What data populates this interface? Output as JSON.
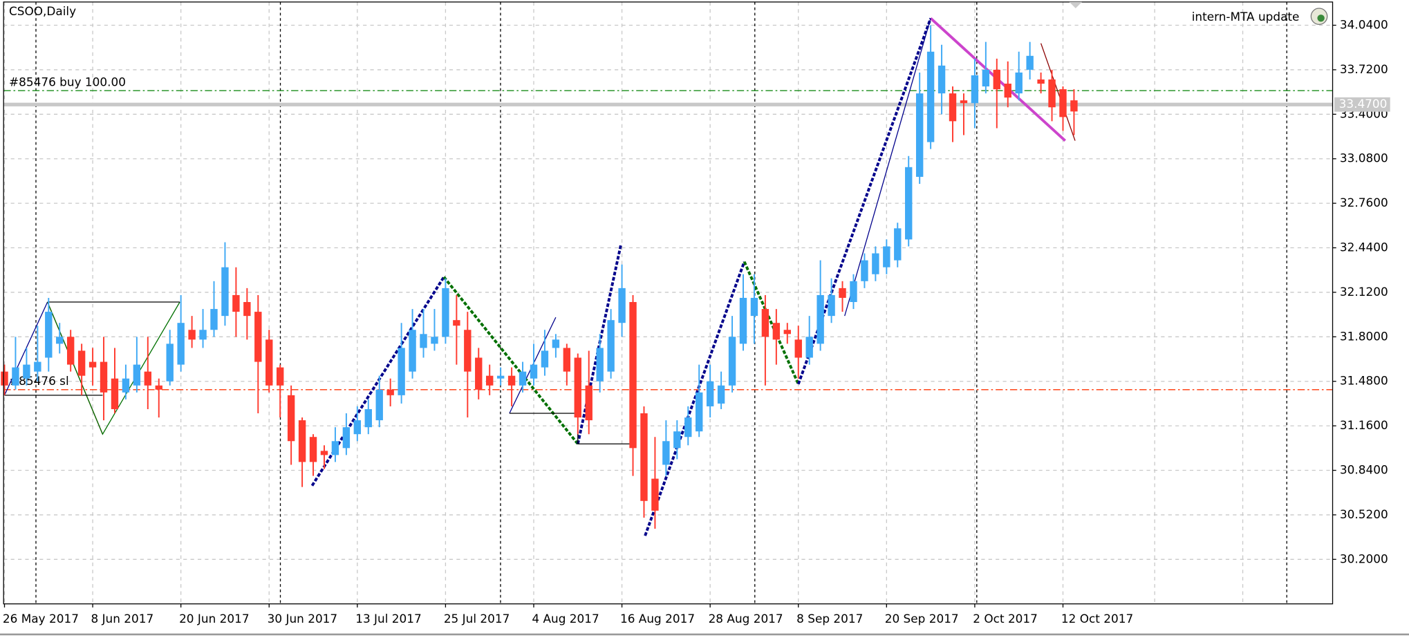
{
  "chart_data": {
    "type": "candlestick",
    "title": "CSOO,Daily",
    "indicator_label": "intern-MTA update",
    "bull_color": "#3fa9f5",
    "bear_color": "#ff3b2f",
    "grid": true,
    "ylim": [
      29.88,
      34.22
    ],
    "yticks": [
      {
        "value": 30.2,
        "label": "30.2000"
      },
      {
        "value": 30.52,
        "label": "30.5200"
      },
      {
        "value": 30.84,
        "label": "30.8400"
      },
      {
        "value": 31.16,
        "label": "31.1600"
      },
      {
        "value": 31.48,
        "label": "31.4800"
      },
      {
        "value": 31.8,
        "label": "31.8000"
      },
      {
        "value": 32.12,
        "label": "32.1200"
      },
      {
        "value": 32.44,
        "label": "32.4400"
      },
      {
        "value": 32.76,
        "label": "32.7600"
      },
      {
        "value": 33.08,
        "label": "33.0800"
      },
      {
        "value": 33.4,
        "label": "33.4000"
      },
      {
        "value": 33.72,
        "label": "33.7200"
      },
      {
        "value": 34.04,
        "label": "34.0400"
      }
    ],
    "categories": [
      "26 May 2017",
      null,
      null,
      null,
      null,
      null,
      null,
      null,
      "8 Jun 2017",
      null,
      null,
      null,
      null,
      null,
      null,
      null,
      "20 Jun 2017",
      null,
      null,
      null,
      null,
      null,
      null,
      null,
      "30 Jun 2017",
      null,
      null,
      null,
      null,
      null,
      null,
      null,
      "13 Jul 2017",
      null,
      null,
      null,
      null,
      null,
      null,
      null,
      "25 Jul 2017",
      null,
      null,
      null,
      null,
      null,
      null,
      null,
      "4 Aug 2017",
      null,
      null,
      null,
      null,
      null,
      null,
      null,
      "16 Aug 2017",
      null,
      null,
      null,
      null,
      null,
      null,
      null,
      "28 Aug 2017",
      null,
      null,
      null,
      null,
      null,
      null,
      null,
      "8 Sep 2017",
      null,
      null,
      null,
      null,
      null,
      null,
      null,
      "20 Sep 2017",
      null,
      null,
      null,
      null,
      null,
      null,
      null,
      "2 Oct 2017",
      null,
      null,
      null,
      null,
      null,
      null,
      null,
      "12 Oct 2017",
      null
    ],
    "ohlc": [
      [
        31.55,
        31.6,
        31.38,
        31.45
      ],
      [
        31.45,
        31.8,
        31.42,
        31.58
      ],
      [
        31.5,
        31.72,
        31.45,
        31.6
      ],
      [
        31.55,
        31.88,
        31.48,
        31.62
      ],
      [
        31.65,
        32.08,
        31.55,
        31.98
      ],
      [
        31.75,
        31.9,
        31.68,
        31.8
      ],
      [
        31.8,
        31.85,
        31.55,
        31.6
      ],
      [
        31.7,
        31.75,
        31.38,
        31.52
      ],
      [
        31.62,
        31.72,
        31.45,
        31.58
      ],
      [
        31.62,
        31.8,
        31.2,
        31.4
      ],
      [
        31.5,
        31.72,
        31.25,
        31.28
      ],
      [
        31.4,
        31.6,
        31.35,
        31.5
      ],
      [
        31.45,
        31.8,
        31.4,
        31.6
      ],
      [
        31.55,
        31.8,
        31.28,
        31.45
      ],
      [
        31.45,
        31.5,
        31.22,
        31.42
      ],
      [
        31.48,
        31.85,
        31.45,
        31.75
      ],
      [
        31.6,
        32.1,
        31.55,
        31.9
      ],
      [
        31.85,
        31.95,
        31.72,
        31.78
      ],
      [
        31.78,
        32.0,
        31.72,
        31.85
      ],
      [
        31.85,
        32.2,
        31.8,
        32.0
      ],
      [
        31.95,
        32.48,
        31.88,
        32.3
      ],
      [
        32.1,
        32.3,
        31.8,
        31.98
      ],
      [
        32.05,
        32.15,
        31.78,
        31.95
      ],
      [
        31.98,
        32.1,
        31.25,
        31.62
      ],
      [
        31.78,
        31.85,
        31.4,
        31.45
      ],
      [
        31.58,
        31.6,
        31.22,
        31.45
      ],
      [
        31.38,
        31.45,
        30.88,
        31.05
      ],
      [
        31.2,
        31.22,
        30.72,
        30.9
      ],
      [
        31.08,
        31.1,
        30.8,
        30.9
      ],
      [
        30.98,
        31.02,
        30.85,
        30.95
      ],
      [
        30.95,
        31.15,
        30.9,
        31.05
      ],
      [
        31.0,
        31.25,
        30.95,
        31.15
      ],
      [
        31.1,
        31.3,
        31.05,
        31.2
      ],
      [
        31.15,
        31.35,
        31.1,
        31.28
      ],
      [
        31.2,
        31.52,
        31.15,
        31.42
      ],
      [
        31.42,
        31.5,
        31.3,
        31.38
      ],
      [
        31.38,
        31.9,
        31.32,
        31.72
      ],
      [
        31.55,
        32.0,
        31.5,
        31.85
      ],
      [
        31.72,
        32.0,
        31.65,
        31.82
      ],
      [
        31.75,
        32.0,
        31.7,
        31.8
      ],
      [
        31.8,
        32.22,
        31.75,
        32.15
      ],
      [
        31.92,
        32.1,
        31.6,
        31.88
      ],
      [
        31.85,
        31.98,
        31.22,
        31.55
      ],
      [
        31.65,
        31.72,
        31.35,
        31.42
      ],
      [
        31.52,
        31.6,
        31.38,
        31.45
      ],
      [
        31.5,
        31.58,
        31.45,
        31.52
      ],
      [
        31.52,
        31.58,
        31.3,
        31.45
      ],
      [
        31.45,
        31.62,
        31.4,
        31.55
      ],
      [
        31.5,
        31.75,
        31.45,
        31.6
      ],
      [
        31.58,
        31.85,
        31.52,
        31.7
      ],
      [
        31.72,
        31.82,
        31.65,
        31.78
      ],
      [
        31.72,
        31.75,
        31.45,
        31.55
      ],
      [
        31.65,
        31.68,
        31.1,
        31.22
      ],
      [
        31.45,
        31.7,
        31.1,
        31.2
      ],
      [
        31.48,
        31.82,
        31.4,
        31.72
      ],
      [
        31.55,
        32.0,
        31.5,
        31.92
      ],
      [
        31.9,
        32.32,
        31.8,
        32.15
      ],
      [
        32.05,
        32.1,
        30.8,
        31.0
      ],
      [
        31.25,
        31.3,
        30.5,
        30.62
      ],
      [
        30.78,
        31.08,
        30.42,
        30.55
      ],
      [
        30.88,
        31.2,
        30.8,
        31.05
      ],
      [
        31.0,
        31.2,
        30.92,
        31.12
      ],
      [
        31.08,
        31.3,
        31.02,
        31.22
      ],
      [
        31.12,
        31.6,
        31.08,
        31.4
      ],
      [
        31.3,
        31.6,
        31.22,
        31.48
      ],
      [
        31.32,
        31.55,
        31.28,
        31.45
      ],
      [
        31.45,
        31.95,
        31.4,
        31.8
      ],
      [
        31.75,
        32.25,
        31.7,
        32.08
      ],
      [
        31.95,
        32.25,
        31.75,
        32.08
      ],
      [
        32.0,
        32.1,
        31.45,
        31.8
      ],
      [
        31.9,
        32.0,
        31.6,
        31.78
      ],
      [
        31.85,
        31.9,
        31.75,
        31.82
      ],
      [
        31.78,
        31.88,
        31.5,
        31.65
      ],
      [
        31.65,
        31.95,
        31.6,
        31.8
      ],
      [
        31.75,
        32.35,
        31.7,
        32.1
      ],
      [
        31.95,
        32.22,
        31.9,
        32.1
      ],
      [
        32.15,
        32.2,
        31.98,
        32.08
      ],
      [
        32.05,
        32.25,
        32.0,
        32.2
      ],
      [
        32.2,
        32.4,
        32.15,
        32.35
      ],
      [
        32.25,
        32.45,
        32.2,
        32.4
      ],
      [
        32.3,
        32.5,
        32.25,
        32.45
      ],
      [
        32.35,
        32.62,
        32.3,
        32.58
      ],
      [
        32.5,
        33.1,
        32.45,
        33.02
      ],
      [
        32.95,
        33.7,
        32.9,
        33.55
      ],
      [
        33.2,
        34.04,
        33.15,
        33.85
      ],
      [
        33.55,
        33.9,
        33.4,
        33.75
      ],
      [
        33.55,
        33.6,
        33.2,
        33.35
      ],
      [
        33.5,
        33.55,
        33.25,
        33.48
      ],
      [
        33.48,
        33.8,
        33.3,
        33.68
      ],
      [
        33.6,
        33.92,
        33.55,
        33.72
      ],
      [
        33.72,
        33.8,
        33.3,
        33.58
      ],
      [
        33.62,
        33.78,
        33.45,
        33.52
      ],
      [
        33.55,
        33.85,
        33.5,
        33.7
      ],
      [
        33.72,
        33.92,
        33.65,
        33.82
      ],
      [
        33.65,
        33.7,
        33.55,
        33.62
      ],
      [
        33.65,
        33.72,
        33.35,
        33.45
      ],
      [
        33.58,
        33.6,
        33.28,
        33.38
      ],
      [
        33.5,
        33.58,
        33.25,
        33.42
      ]
    ],
    "levels": [
      {
        "label": "#85476 buy 100.00",
        "value": 33.57,
        "color": "#008000"
      },
      {
        "label": "#85476 sl",
        "value": 31.42,
        "color": "#ff3300"
      }
    ],
    "current_price": {
      "value": 33.47,
      "label": "33.4700"
    },
    "trend_lines": [
      {
        "color": "#00008b",
        "width": 3,
        "dash": true,
        "points": [
          [
            27.9,
            30.73
          ],
          [
            39.85,
            32.23
          ]
        ]
      },
      {
        "color": "#007000",
        "width": 3,
        "dash": true,
        "points": [
          [
            39.85,
            32.23
          ],
          [
            52.0,
            31.03
          ]
        ]
      },
      {
        "color": "#00008b",
        "width": 3,
        "dash": true,
        "points": [
          [
            52.0,
            31.03
          ],
          [
            55.9,
            32.46
          ]
        ]
      },
      {
        "color": "#00008b",
        "width": 3,
        "dash": true,
        "points": [
          [
            58.1,
            30.37
          ],
          [
            67.1,
            32.34
          ]
        ]
      },
      {
        "color": "#007000",
        "width": 3,
        "dash": true,
        "points": [
          [
            67.1,
            32.34
          ],
          [
            72.0,
            31.46
          ]
        ]
      },
      {
        "color": "#00008b",
        "width": 3,
        "dash": true,
        "points": [
          [
            72.0,
            31.46
          ],
          [
            84.0,
            34.09
          ]
        ]
      },
      {
        "color": "#cc44cc",
        "width": 3,
        "dash": false,
        "points": [
          [
            84.0,
            34.09
          ],
          [
            96.2,
            33.21
          ]
        ]
      },
      {
        "color": "#00008b",
        "width": 1,
        "dash": false,
        "points": [
          [
            0,
            31.38
          ],
          [
            3.9,
            32.05
          ]
        ]
      },
      {
        "color": "#8b0000",
        "width": 1,
        "dash": false,
        "points": [
          [
            3.9,
            32.05
          ],
          [
            8.9,
            31.1
          ]
        ]
      },
      {
        "color": "#007000",
        "width": 1,
        "dash": false,
        "points": [
          [
            3.9,
            32.05
          ],
          [
            8.9,
            31.1
          ],
          [
            15.9,
            32.05
          ]
        ]
      },
      {
        "color": "#000000",
        "width": 1,
        "dash": false,
        "points": [
          [
            3.9,
            32.05
          ],
          [
            15.9,
            32.05
          ]
        ]
      },
      {
        "color": "#000000",
        "width": 1,
        "dash": false,
        "points": [
          [
            0,
            31.38
          ],
          [
            8.9,
            31.38
          ]
        ]
      },
      {
        "color": "#00008b",
        "width": 1,
        "dash": false,
        "points": [
          [
            45.8,
            31.25
          ],
          [
            50.0,
            31.94
          ]
        ]
      },
      {
        "color": "#000000",
        "width": 1,
        "dash": false,
        "points": [
          [
            45.8,
            31.25
          ],
          [
            52.0,
            31.25
          ],
          [
            52.0,
            31.03
          ],
          [
            57.1,
            31.03
          ]
        ]
      },
      {
        "color": "#00008b",
        "width": 1,
        "dash": false,
        "points": [
          [
            76.2,
            31.95
          ],
          [
            84.0,
            34.09
          ]
        ]
      },
      {
        "color": "#8b0000",
        "width": 1,
        "dash": false,
        "points": [
          [
            94.0,
            33.91
          ],
          [
            97.1,
            33.21
          ]
        ]
      }
    ]
  }
}
